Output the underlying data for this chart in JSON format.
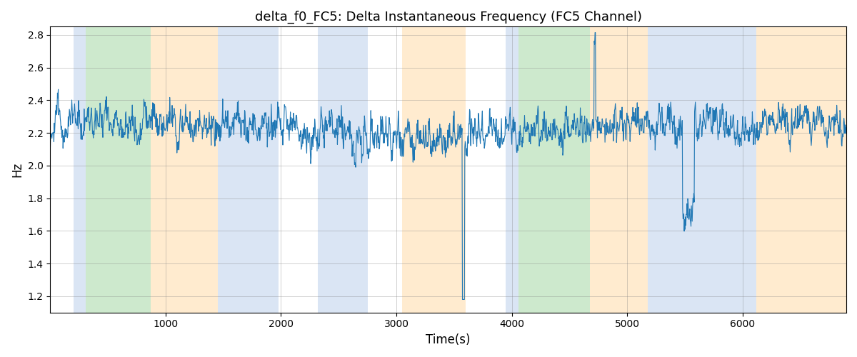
{
  "title": "delta_f0_FC5: Delta Instantaneous Frequency (FC5 Channel)",
  "xlabel": "Time(s)",
  "ylabel": "Hz",
  "ylim": [
    1.1,
    2.85
  ],
  "xlim": [
    0,
    6900
  ],
  "yticks": [
    1.2,
    1.4,
    1.6,
    1.8,
    2.0,
    2.2,
    2.4,
    2.6,
    2.8
  ],
  "xticks": [
    1000,
    2000,
    3000,
    4000,
    5000,
    6000
  ],
  "line_color": "#1f77b4",
  "line_width": 0.8,
  "bg_color": "#ffffff",
  "bands": [
    {
      "xmin": 200,
      "xmax": 310,
      "color": "#aec6e8",
      "alpha": 0.45
    },
    {
      "xmin": 310,
      "xmax": 870,
      "color": "#90d090",
      "alpha": 0.45
    },
    {
      "xmin": 870,
      "xmax": 1450,
      "color": "#ffd8a0",
      "alpha": 0.5
    },
    {
      "xmin": 1450,
      "xmax": 1980,
      "color": "#aec6e8",
      "alpha": 0.45
    },
    {
      "xmin": 2320,
      "xmax": 2750,
      "color": "#aec6e8",
      "alpha": 0.45
    },
    {
      "xmin": 3050,
      "xmax": 3600,
      "color": "#ffd8a0",
      "alpha": 0.5
    },
    {
      "xmin": 3950,
      "xmax": 4060,
      "color": "#aec6e8",
      "alpha": 0.45
    },
    {
      "xmin": 4060,
      "xmax": 4680,
      "color": "#90d090",
      "alpha": 0.45
    },
    {
      "xmin": 4680,
      "xmax": 5180,
      "color": "#ffd8a0",
      "alpha": 0.5
    },
    {
      "xmin": 5180,
      "xmax": 6120,
      "color": "#aec6e8",
      "alpha": 0.45
    },
    {
      "xmin": 6120,
      "xmax": 6900,
      "color": "#ffd8a0",
      "alpha": 0.5
    }
  ],
  "seed": 123,
  "n_points": 2000,
  "base_freq": 2.22,
  "smooth_sigma": 3.5,
  "rough_scale": 0.09,
  "smooth_scale": 0.1
}
